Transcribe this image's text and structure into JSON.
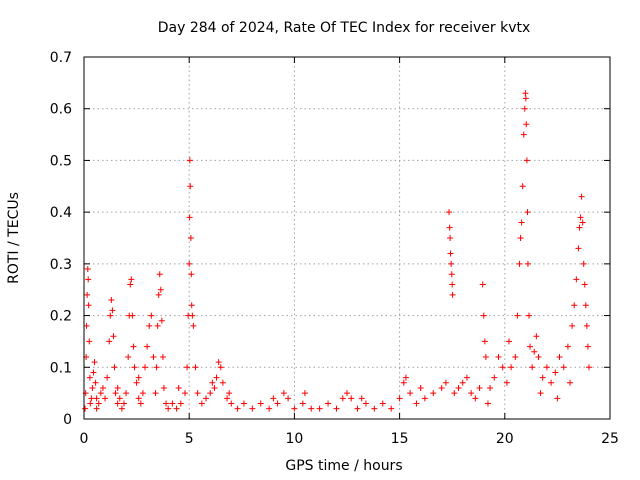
{
  "chart_data": {
    "type": "scatter",
    "title": "Day 284 of 2024, Rate Of TEC Index for receiver kvtx",
    "xlabel": "GPS time / hours",
    "ylabel": "ROTI / TECUs",
    "xlim": [
      0,
      25
    ],
    "ylim": [
      0,
      0.7
    ],
    "xticks": [
      0,
      5,
      10,
      15,
      20,
      25
    ],
    "yticks": [
      0,
      0.1,
      0.2,
      0.3,
      0.4,
      0.5,
      0.6,
      0.7
    ],
    "xtick_labels": [
      "0",
      "5",
      "10",
      "15",
      "20",
      "25"
    ],
    "ytick_labels": [
      "0",
      "0.1",
      "0.2",
      "0.3",
      "0.4",
      "0.5",
      "0.6",
      "0.7"
    ],
    "grid": true,
    "marker": "+",
    "color": "#ff0000",
    "series": [
      {
        "name": "ROTI",
        "points": [
          [
            0.05,
            0.02
          ],
          [
            0.08,
            0.05
          ],
          [
            0.1,
            0.12
          ],
          [
            0.12,
            0.18
          ],
          [
            0.15,
            0.24
          ],
          [
            0.18,
            0.29
          ],
          [
            0.2,
            0.27
          ],
          [
            0.22,
            0.22
          ],
          [
            0.25,
            0.15
          ],
          [
            0.28,
            0.08
          ],
          [
            0.3,
            0.03
          ],
          [
            0.35,
            0.04
          ],
          [
            0.4,
            0.06
          ],
          [
            0.45,
            0.09
          ],
          [
            0.5,
            0.11
          ],
          [
            0.55,
            0.07
          ],
          [
            0.6,
            0.04
          ],
          [
            0.7,
            0.03
          ],
          [
            0.8,
            0.05
          ],
          [
            0.9,
            0.06
          ],
          [
            1.0,
            0.04
          ],
          [
            1.1,
            0.08
          ],
          [
            1.2,
            0.15
          ],
          [
            1.25,
            0.2
          ],
          [
            1.3,
            0.23
          ],
          [
            1.35,
            0.21
          ],
          [
            1.4,
            0.16
          ],
          [
            1.45,
            0.1
          ],
          [
            1.5,
            0.05
          ],
          [
            1.6,
            0.03
          ],
          [
            1.7,
            0.04
          ],
          [
            1.8,
            0.02
          ],
          [
            1.9,
            0.03
          ],
          [
            2.0,
            0.05
          ],
          [
            2.1,
            0.12
          ],
          [
            2.15,
            0.2
          ],
          [
            2.2,
            0.26
          ],
          [
            2.25,
            0.27
          ],
          [
            2.3,
            0.2
          ],
          [
            2.35,
            0.14
          ],
          [
            2.4,
            0.1
          ],
          [
            2.5,
            0.07
          ],
          [
            2.6,
            0.04
          ],
          [
            2.7,
            0.03
          ],
          [
            2.8,
            0.05
          ],
          [
            2.9,
            0.1
          ],
          [
            3.0,
            0.14
          ],
          [
            3.1,
            0.18
          ],
          [
            3.2,
            0.2
          ],
          [
            3.3,
            0.12
          ],
          [
            3.4,
            0.05
          ],
          [
            3.45,
            0.1
          ],
          [
            3.5,
            0.18
          ],
          [
            3.55,
            0.24
          ],
          [
            3.6,
            0.28
          ],
          [
            3.65,
            0.25
          ],
          [
            3.7,
            0.19
          ],
          [
            3.75,
            0.12
          ],
          [
            3.8,
            0.06
          ],
          [
            3.9,
            0.03
          ],
          [
            4.0,
            0.02
          ],
          [
            4.2,
            0.03
          ],
          [
            4.4,
            0.02
          ],
          [
            4.6,
            0.03
          ],
          [
            4.8,
            0.05
          ],
          [
            4.9,
            0.1
          ],
          [
            4.95,
            0.2
          ],
          [
            5.0,
            0.3
          ],
          [
            5.02,
            0.39
          ],
          [
            5.05,
            0.45
          ],
          [
            5.03,
            0.5
          ],
          [
            5.08,
            0.35
          ],
          [
            5.1,
            0.28
          ],
          [
            5.12,
            0.22
          ],
          [
            5.15,
            0.2
          ],
          [
            5.2,
            0.18
          ],
          [
            5.3,
            0.1
          ],
          [
            5.4,
            0.05
          ],
          [
            5.6,
            0.03
          ],
          [
            5.8,
            0.04
          ],
          [
            6.0,
            0.05
          ],
          [
            6.1,
            0.07
          ],
          [
            6.2,
            0.06
          ],
          [
            6.3,
            0.08
          ],
          [
            6.4,
            0.11
          ],
          [
            6.5,
            0.1
          ],
          [
            6.6,
            0.07
          ],
          [
            6.8,
            0.04
          ],
          [
            7.0,
            0.03
          ],
          [
            7.3,
            0.02
          ],
          [
            7.6,
            0.03
          ],
          [
            8.0,
            0.02
          ],
          [
            8.4,
            0.03
          ],
          [
            8.8,
            0.02
          ],
          [
            9.2,
            0.03
          ],
          [
            9.5,
            0.05
          ],
          [
            9.7,
            0.04
          ],
          [
            10.0,
            0.02
          ],
          [
            10.4,
            0.03
          ],
          [
            10.8,
            0.02
          ],
          [
            11.2,
            0.02
          ],
          [
            11.6,
            0.03
          ],
          [
            12.0,
            0.02
          ],
          [
            12.3,
            0.04
          ],
          [
            12.5,
            0.05
          ],
          [
            12.7,
            0.04
          ],
          [
            13.0,
            0.02
          ],
          [
            13.4,
            0.03
          ],
          [
            13.8,
            0.02
          ],
          [
            14.2,
            0.03
          ],
          [
            14.6,
            0.02
          ],
          [
            15.0,
            0.04
          ],
          [
            15.2,
            0.07
          ],
          [
            15.3,
            0.08
          ],
          [
            15.5,
            0.05
          ],
          [
            15.8,
            0.03
          ],
          [
            16.2,
            0.04
          ],
          [
            16.6,
            0.05
          ],
          [
            17.0,
            0.06
          ],
          [
            17.2,
            0.07
          ],
          [
            17.35,
            0.4
          ],
          [
            17.38,
            0.37
          ],
          [
            17.4,
            0.35
          ],
          [
            17.42,
            0.32
          ],
          [
            17.45,
            0.3
          ],
          [
            17.48,
            0.28
          ],
          [
            17.5,
            0.26
          ],
          [
            17.52,
            0.24
          ],
          [
            17.6,
            0.05
          ],
          [
            17.8,
            0.06
          ],
          [
            18.0,
            0.07
          ],
          [
            18.2,
            0.08
          ],
          [
            18.4,
            0.05
          ],
          [
            18.6,
            0.04
          ],
          [
            18.8,
            0.06
          ],
          [
            18.95,
            0.26
          ],
          [
            19.0,
            0.2
          ],
          [
            19.05,
            0.15
          ],
          [
            19.1,
            0.12
          ],
          [
            19.3,
            0.06
          ],
          [
            19.5,
            0.08
          ],
          [
            19.7,
            0.12
          ],
          [
            19.9,
            0.1
          ],
          [
            20.1,
            0.07
          ],
          [
            20.3,
            0.1
          ],
          [
            20.5,
            0.12
          ],
          [
            20.6,
            0.2
          ],
          [
            20.7,
            0.3
          ],
          [
            20.75,
            0.35
          ],
          [
            20.8,
            0.38
          ],
          [
            20.85,
            0.45
          ],
          [
            20.9,
            0.55
          ],
          [
            20.95,
            0.6
          ],
          [
            20.98,
            0.63
          ],
          [
            21.0,
            0.62
          ],
          [
            21.02,
            0.57
          ],
          [
            21.05,
            0.5
          ],
          [
            21.08,
            0.4
          ],
          [
            21.1,
            0.3
          ],
          [
            21.15,
            0.2
          ],
          [
            21.2,
            0.14
          ],
          [
            21.3,
            0.1
          ],
          [
            21.4,
            0.13
          ],
          [
            21.5,
            0.16
          ],
          [
            21.6,
            0.12
          ],
          [
            21.8,
            0.08
          ],
          [
            22.0,
            0.1
          ],
          [
            22.2,
            0.07
          ],
          [
            22.4,
            0.09
          ],
          [
            22.6,
            0.12
          ],
          [
            22.8,
            0.1
          ],
          [
            23.0,
            0.14
          ],
          [
            23.2,
            0.18
          ],
          [
            23.3,
            0.22
          ],
          [
            23.4,
            0.27
          ],
          [
            23.5,
            0.33
          ],
          [
            23.55,
            0.37
          ],
          [
            23.6,
            0.39
          ],
          [
            23.65,
            0.43
          ],
          [
            23.7,
            0.38
          ],
          [
            23.75,
            0.3
          ],
          [
            23.8,
            0.26
          ],
          [
            23.85,
            0.22
          ],
          [
            23.9,
            0.18
          ],
          [
            23.95,
            0.14
          ],
          [
            24.0,
            0.1
          ],
          [
            0.6,
            0.02
          ],
          [
            1.6,
            0.06
          ],
          [
            2.6,
            0.08
          ],
          [
            4.5,
            0.06
          ],
          [
            6.9,
            0.05
          ],
          [
            9.0,
            0.04
          ],
          [
            10.5,
            0.05
          ],
          [
            13.2,
            0.04
          ],
          [
            16.0,
            0.06
          ],
          [
            19.2,
            0.03
          ],
          [
            20.2,
            0.15
          ],
          [
            21.7,
            0.05
          ],
          [
            22.5,
            0.04
          ],
          [
            23.1,
            0.07
          ]
        ]
      }
    ]
  }
}
